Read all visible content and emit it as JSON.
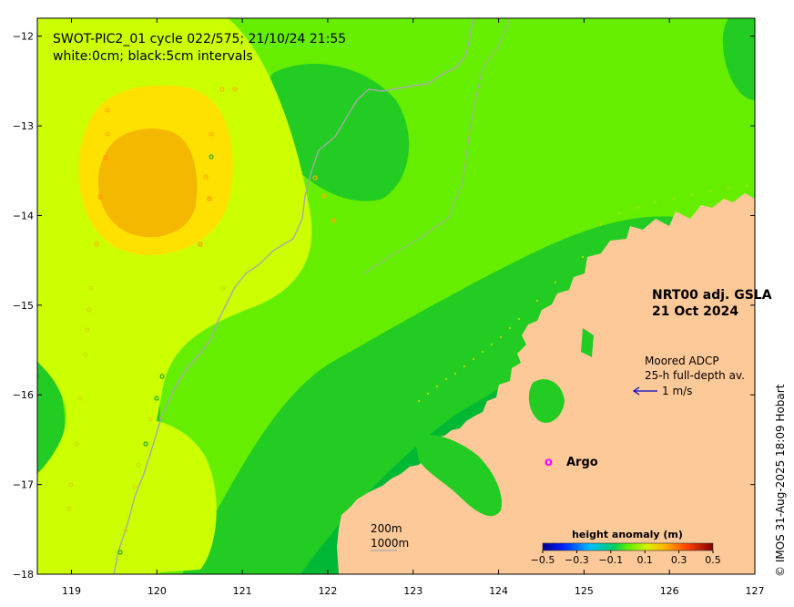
{
  "title_line1": "SWOT-PIC2_01 cycle 022/575; 21/10/24 21:55",
  "title_line2": "white:0cm; black:5cm intervals",
  "product_line1": "NRT00 adj. GSLA",
  "product_line2": "21 Oct 2024",
  "adcp_line1": "Moored ADCP",
  "adcp_line2": "25-h full-depth av.",
  "adcp_scale": "1 m/s",
  "argo_label": "Argo",
  "argo_marker": "o",
  "isobath_200": "200m",
  "isobath_1000": "1000m",
  "credit": "© IMOS 31-Aug-2025 18:09 Hobart",
  "colorbar": {
    "title": "height anomaly (m)",
    "tick_labels": [
      "−0.5",
      "−0.3",
      "−0.1",
      "0.1",
      "0.3",
      "0.5"
    ]
  },
  "axes": {
    "x_tick_labels": [
      "119",
      "120",
      "121",
      "122",
      "123",
      "124",
      "125",
      "126",
      "127"
    ],
    "y_tick_labels": [
      "−12",
      "−13",
      "−14",
      "−15",
      "−16",
      "−17",
      "−18"
    ],
    "lon_range": [
      118.6,
      127.0
    ],
    "lat_range": [
      -18.0,
      -11.8
    ]
  },
  "colors": {
    "ocean_base": "#66ee00",
    "high_anomaly": "#ccff00",
    "peak_anomaly": "#ffd700",
    "core_anomaly": "#f5b800",
    "low_anomaly": "#22cc22",
    "lowest_anomaly": "#00b833",
    "land": "#fdc998",
    "isobath": "#a8a8a8",
    "argo": "#ff00ff",
    "adcp_arrow": "#0000cc"
  }
}
